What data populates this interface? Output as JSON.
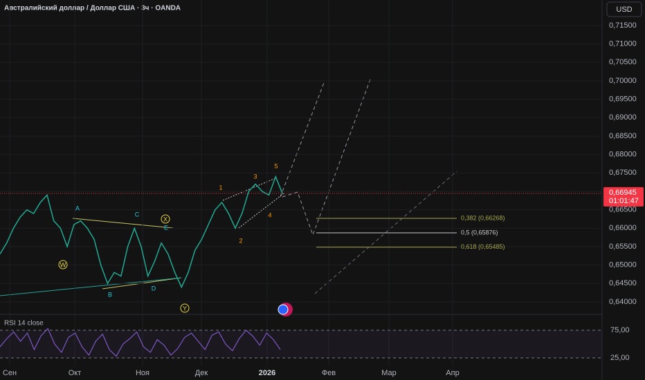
{
  "chart_data": {
    "type": "line",
    "title": "Австралийский доллар / Доллар США · 3ч · OANDA",
    "currency": "USD",
    "xticks": [
      "Сен",
      "Окт",
      "Ноя",
      "Дек",
      "2026",
      "Фев",
      "Мар",
      "Апр"
    ],
    "ylim": [
      0.64,
      0.715
    ],
    "yticks": [
      {
        "value": 0.715,
        "label": "0,71500"
      },
      {
        "value": 0.71,
        "label": "0,71000"
      },
      {
        "value": 0.705,
        "label": "0,70500"
      },
      {
        "value": 0.7,
        "label": "0,70000"
      },
      {
        "value": 0.695,
        "label": "0,69500"
      },
      {
        "value": 0.69,
        "label": "0,69000"
      },
      {
        "value": 0.685,
        "label": "0,68500"
      },
      {
        "value": 0.68,
        "label": "0,68000"
      },
      {
        "value": 0.675,
        "label": "0,67500"
      },
      {
        "value": 0.67,
        "label": "0,67000"
      },
      {
        "value": 0.665,
        "label": "0,66500"
      },
      {
        "value": 0.66,
        "label": "0,66000"
      },
      {
        "value": 0.655,
        "label": "0,65500"
      },
      {
        "value": 0.65,
        "label": "0,65000"
      },
      {
        "value": 0.645,
        "label": "0,64500"
      },
      {
        "value": 0.64,
        "label": "0,64000"
      }
    ],
    "grid": true,
    "series": [
      {
        "name": "AUDUSD",
        "color": "#22ab94",
        "values": [
          0.653,
          0.656,
          0.66,
          0.663,
          0.665,
          0.664,
          0.667,
          0.669,
          0.662,
          0.66,
          0.655,
          0.661,
          0.662,
          0.66,
          0.657,
          0.65,
          0.645,
          0.648,
          0.647,
          0.655,
          0.66,
          0.655,
          0.647,
          0.651,
          0.656,
          0.653,
          0.648,
          0.644,
          0.648,
          0.654,
          0.657,
          0.661,
          0.665,
          0.667,
          0.664,
          0.66,
          0.664,
          0.67,
          0.672,
          0.67,
          0.669,
          0.674,
          0.66945
        ]
      }
    ],
    "last_price": {
      "value": 0.66945,
      "label": "0,66945"
    },
    "countdown": "01:01:47",
    "fib_levels": [
      {
        "value": 0.66268,
        "label": "0,382 (0,66268)"
      },
      {
        "value": 0.65876,
        "label": "0,5 (0,65876)"
      },
      {
        "value": 0.65485,
        "label": "0,618 (0,65485)"
      }
    ],
    "wave_labels": [
      "W",
      "A",
      "B",
      "C",
      "D",
      "E",
      "X",
      "Y",
      "1",
      "2",
      "3",
      "4",
      "5"
    ],
    "rsi": {
      "label": "RSI 14 close",
      "color": "#7e57c2",
      "ylim": [
        17,
        97
      ],
      "yticks": [
        {
          "value": 75,
          "label": "75,00"
        },
        {
          "value": 25,
          "label": "25,00"
        }
      ],
      "values": [
        45,
        60,
        72,
        55,
        70,
        40,
        65,
        78,
        50,
        35,
        62,
        70,
        45,
        30,
        55,
        68,
        40,
        28,
        50,
        60,
        72,
        45,
        35,
        58,
        48,
        30,
        42,
        62,
        70,
        55,
        40,
        66,
        72,
        50,
        38,
        60,
        75,
        64,
        48,
        70,
        58,
        40
      ]
    }
  }
}
